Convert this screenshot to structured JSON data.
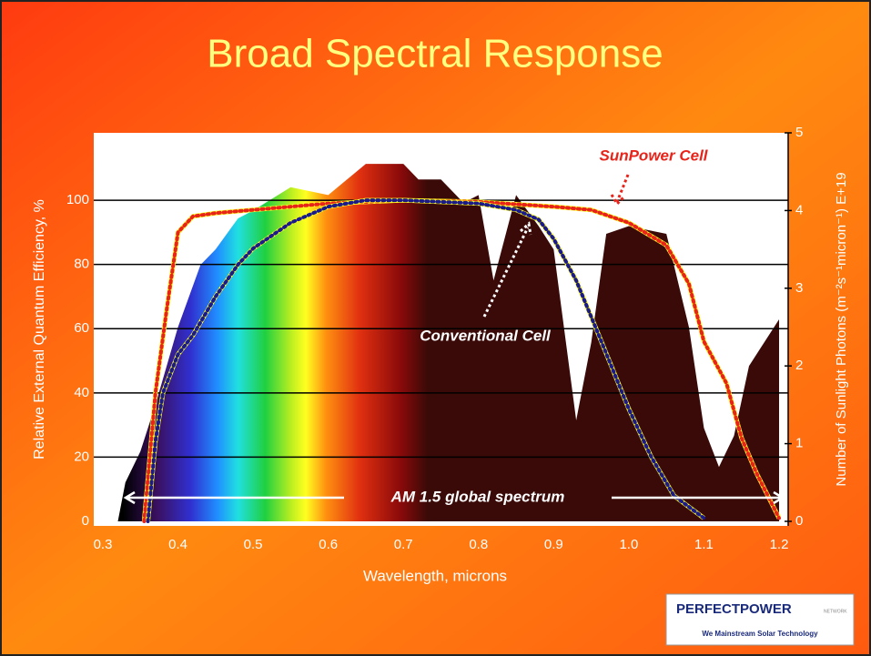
{
  "chart_data": {
    "type": "line",
    "title": "Broad Spectral Response",
    "x_label": "Wavelength, microns",
    "y_label": "Relative External Quantum Efficiency, %",
    "y2_label": "Number of Sunlight Photons (m⁻²s⁻¹micron⁻¹) E+19",
    "xlim": [
      0.3,
      1.2
    ],
    "xticks": [
      0.3,
      0.4,
      0.5,
      0.6,
      0.7,
      0.8,
      0.9,
      {
        "value": 1,
        "label": "1.0"
      },
      1.1,
      1.2
    ],
    "ylim": [
      0,
      121
    ],
    "yticks": [
      0,
      20,
      40,
      60,
      80,
      100
    ],
    "y2lim": [
      0,
      5
    ],
    "y2ticks": [
      0,
      1,
      2,
      3,
      4,
      5
    ],
    "grid": true,
    "series": [
      {
        "name": "SunPower Cell",
        "color": "#e8231a",
        "x": [
          0.355,
          0.37,
          0.385,
          0.4,
          0.42,
          0.45,
          0.5,
          0.6,
          0.7,
          0.8,
          0.9,
          0.95,
          1.0,
          1.05,
          1.08,
          1.1,
          1.13,
          1.15,
          1.17,
          1.2
        ],
        "values": [
          0,
          40,
          66,
          90,
          95,
          96,
          97,
          99,
          100,
          99.5,
          98,
          97,
          93,
          86,
          74,
          56,
          43,
          26,
          15,
          1
        ]
      },
      {
        "name": "Conventional Cell",
        "color": "#1a1a8c",
        "x": [
          0.36,
          0.37,
          0.38,
          0.4,
          0.42,
          0.45,
          0.48,
          0.5,
          0.55,
          0.6,
          0.65,
          0.7,
          0.8,
          0.85,
          0.88,
          0.9,
          0.93,
          0.96,
          1.0,
          1.03,
          1.06,
          1.1
        ],
        "values": [
          0,
          25,
          40,
          52,
          58,
          70,
          80,
          85,
          93,
          98,
          100,
          100,
          99,
          97,
          94,
          88,
          75,
          58,
          35,
          20,
          8,
          1
        ]
      },
      {
        "name": "AM 1.5 global spectrum",
        "type": "area",
        "axis": "y2",
        "color": "#3a0a08",
        "x": [
          0.32,
          0.33,
          0.35,
          0.37,
          0.4,
          0.43,
          0.45,
          0.48,
          0.5,
          0.55,
          0.6,
          0.65,
          0.7,
          0.72,
          0.75,
          0.78,
          0.8,
          0.82,
          0.85,
          0.88,
          0.9,
          0.93,
          0.95,
          0.97,
          1.0,
          1.05,
          1.08,
          1.1,
          1.12,
          1.14,
          1.16,
          1.18,
          1.2
        ],
        "values": [
          0,
          0.5,
          0.9,
          1.5,
          2.5,
          3.3,
          3.5,
          3.9,
          4.0,
          4.3,
          4.2,
          4.6,
          4.6,
          4.4,
          4.4,
          4.1,
          4.2,
          3.1,
          4.2,
          3.8,
          3.5,
          1.3,
          2.3,
          3.7,
          3.8,
          3.7,
          2.5,
          1.2,
          0.7,
          1.1,
          2.0,
          2.3,
          2.6
        ]
      }
    ]
  },
  "logo": {
    "title": "PERFECTPOWER",
    "suffix": "NETWORK",
    "tagline": "We Mainstream Solar Technology"
  }
}
